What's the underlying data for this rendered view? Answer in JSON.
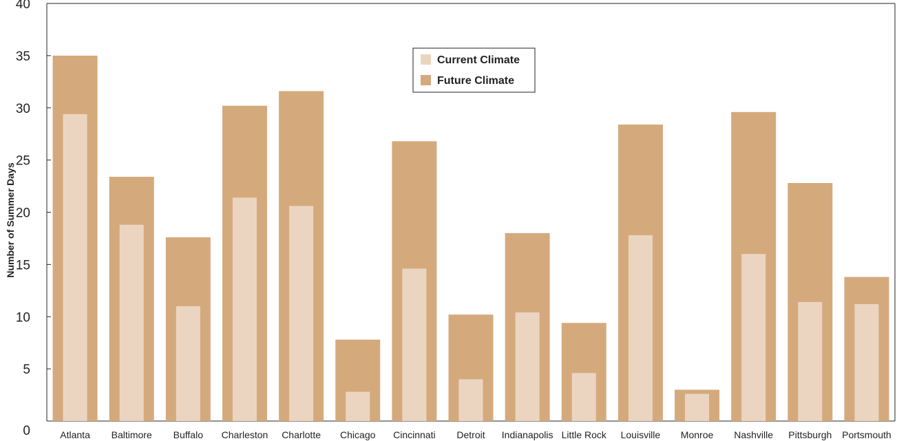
{
  "chart_data": {
    "type": "bar",
    "title": "",
    "xlabel": "",
    "ylabel": "Number of Summer Days",
    "ylim": [
      0,
      40
    ],
    "yticks": [
      0,
      5,
      10,
      15,
      20,
      25,
      30,
      35,
      40
    ],
    "grid": false,
    "legend_position": "top-center",
    "categories": [
      "Atlanta",
      "Baltimore",
      "Buffalo",
      "Charleston",
      "Charlotte",
      "Chicago",
      "Cincinnati",
      "Detroit",
      "Indianapolis",
      "Little Rock",
      "Louisville",
      "Monroe",
      "Nashville",
      "Pittsburgh",
      "Portsmouth"
    ],
    "series": [
      {
        "name": "Current Climate",
        "color": "#ecd5c0",
        "values": [
          29.4,
          18.8,
          11.0,
          21.4,
          20.6,
          2.8,
          14.6,
          4.0,
          10.4,
          4.6,
          17.8,
          2.6,
          16.0,
          11.4,
          11.2
        ]
      },
      {
        "name": "Future Climate",
        "color": "#d4aa7d",
        "values": [
          35.0,
          23.4,
          17.6,
          30.2,
          31.6,
          7.8,
          26.8,
          10.2,
          18.0,
          9.4,
          28.4,
          3.0,
          29.6,
          22.8,
          13.8
        ]
      }
    ]
  }
}
